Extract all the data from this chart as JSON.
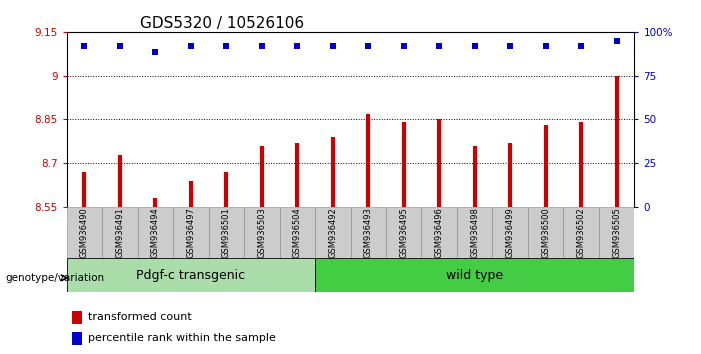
{
  "title": "GDS5320 / 10526106",
  "samples": [
    "GSM936490",
    "GSM936491",
    "GSM936494",
    "GSM936497",
    "GSM936501",
    "GSM936503",
    "GSM936504",
    "GSM936492",
    "GSM936493",
    "GSM936495",
    "GSM936496",
    "GSM936498",
    "GSM936499",
    "GSM936500",
    "GSM936502",
    "GSM936505"
  ],
  "red_values": [
    8.67,
    8.73,
    8.58,
    8.64,
    8.67,
    8.76,
    8.77,
    8.79,
    8.87,
    8.84,
    8.85,
    8.76,
    8.77,
    8.83,
    8.84,
    9.0
  ],
  "blue_values": [
    9.1,
    9.1,
    9.08,
    9.1,
    9.1,
    9.1,
    9.1,
    9.1,
    9.1,
    9.1,
    9.1,
    9.1,
    9.1,
    9.1,
    9.1,
    9.12
  ],
  "ylim": [
    8.55,
    9.15
  ],
  "yticks": [
    8.55,
    8.7,
    8.85,
    9.0,
    9.15
  ],
  "ytick_labels": [
    "8.55",
    "8.7",
    "8.85",
    "9",
    "9.15"
  ],
  "right_yticks_pct": [
    0,
    25,
    50,
    75,
    100
  ],
  "right_ytick_labels": [
    "0",
    "25",
    "50",
    "75",
    "100%"
  ],
  "gridlines": [
    8.7,
    8.85,
    9.0
  ],
  "group1_label": "Pdgf-c transgenic",
  "group2_label": "wild type",
  "group1_count": 7,
  "group2_count": 9,
  "bar_color": "#cc0000",
  "dot_color": "#0000cc",
  "group1_bg": "#aaddaa",
  "group2_bg": "#44cc44",
  "sample_bg": "#cccccc",
  "legend_red": "transformed count",
  "legend_blue": "percentile rank within the sample",
  "xlabel_left": "genotype/variation",
  "title_fontsize": 11,
  "tick_fontsize": 7.5,
  "sample_fontsize": 6,
  "group_fontsize": 9,
  "legend_fontsize": 8
}
